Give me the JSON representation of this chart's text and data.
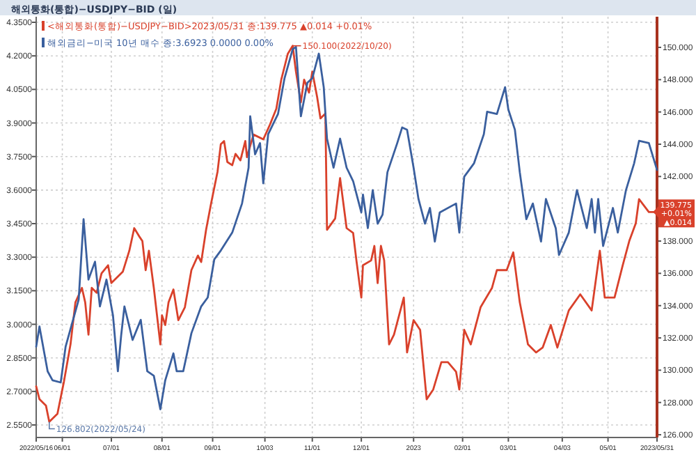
{
  "chart_data": {
    "type": "line",
    "title": "해외통화(통합)−USDJPY−BID (일)",
    "xlim": [
      "2022-05-16",
      "2023-05-31"
    ],
    "xticks": [
      {
        "value": "2022-05-16",
        "label": "2022/05/16"
      },
      {
        "value": "2022-06-01",
        "label": "06/01"
      },
      {
        "value": "2022-07-01",
        "label": "07/01"
      },
      {
        "value": "2022-08-01",
        "label": "08/01"
      },
      {
        "value": "2022-09-01",
        "label": "09/01"
      },
      {
        "value": "2022-10-03",
        "label": "10/03"
      },
      {
        "value": "2022-11-01",
        "label": "11/01"
      },
      {
        "value": "2022-12-01",
        "label": "12/01"
      },
      {
        "value": "2023-01-02",
        "label": "2023"
      },
      {
        "value": "2023-02-01",
        "label": "02/01"
      },
      {
        "value": "2023-03-01",
        "label": "03/01"
      },
      {
        "value": "2023-04-03",
        "label": "04/03"
      },
      {
        "value": "2023-05-01",
        "label": "05/01"
      },
      {
        "value": "2023-05-31",
        "label": "2023/05/31"
      }
    ],
    "ylim": [
      2.494,
      4.375
    ],
    "yticks": [
      {
        "value": 2.55,
        "label": "2.5500"
      },
      {
        "value": 2.7,
        "label": "2.7000"
      },
      {
        "value": 2.85,
        "label": "2.8500"
      },
      {
        "value": 3.0,
        "label": "3.0000"
      },
      {
        "value": 3.15,
        "label": "3.1500"
      },
      {
        "value": 3.3,
        "label": "3.3000"
      },
      {
        "value": 3.45,
        "label": "3.4500"
      },
      {
        "value": 3.6,
        "label": "3.6000"
      },
      {
        "value": 3.75,
        "label": "3.7500"
      },
      {
        "value": 3.9,
        "label": "3.9000"
      },
      {
        "value": 4.05,
        "label": "4.0500"
      },
      {
        "value": 4.2,
        "label": "4.2000"
      },
      {
        "value": 4.35,
        "label": "4.3500"
      }
    ],
    "y2lim": [
      125.83,
      151.9
    ],
    "y2ticks": [
      {
        "value": 126,
        "label": "126.000"
      },
      {
        "value": 128,
        "label": "128.000"
      },
      {
        "value": 130,
        "label": "130.000"
      },
      {
        "value": 132,
        "label": "132.000"
      },
      {
        "value": 134,
        "label": "134.000"
      },
      {
        "value": 136,
        "label": "136.000"
      },
      {
        "value": 138,
        "label": "138.000"
      },
      {
        "value": 142,
        "label": "142.000"
      },
      {
        "value": 144,
        "label": "144.000"
      },
      {
        "value": 146,
        "label": "146.000"
      },
      {
        "value": 148,
        "label": "148.000"
      },
      {
        "value": 150,
        "label": "150.000"
      }
    ],
    "grid": true,
    "legend": "top left",
    "series": [
      {
        "name": "<해외통화(통합)−USDJPY−BID>2023/05/31 종:139.775 ▲0.014 +0.01%",
        "color": "#d9412b",
        "axis": "y2",
        "x": [
          "2022-05-16",
          "2022-05-18",
          "2022-05-22",
          "2022-05-24",
          "2022-05-28",
          "2022-05-29",
          "2022-06-02",
          "2022-06-06",
          "2022-06-09",
          "2022-06-13",
          "2022-06-15",
          "2022-06-17",
          "2022-06-19",
          "2022-06-22",
          "2022-06-25",
          "2022-06-29",
          "2022-07-01",
          "2022-07-08",
          "2022-07-12",
          "2022-07-15",
          "2022-07-18",
          "2022-07-20",
          "2022-07-22",
          "2022-07-24",
          "2022-07-27",
          "2022-07-31",
          "2022-08-01",
          "2022-08-03",
          "2022-08-05",
          "2022-08-08",
          "2022-08-11",
          "2022-08-15",
          "2022-08-19",
          "2022-08-23",
          "2022-08-25",
          "2022-08-28",
          "2022-08-31",
          "2022-09-04",
          "2022-09-06",
          "2022-09-08",
          "2022-09-10",
          "2022-09-13",
          "2022-09-15",
          "2022-09-18",
          "2022-09-21",
          "2022-09-22",
          "2022-09-26",
          "2022-10-02",
          "2022-10-06",
          "2022-10-10",
          "2022-10-13",
          "2022-10-17",
          "2022-10-20",
          "2022-10-22",
          "2022-10-25",
          "2022-10-27",
          "2022-10-30",
          "2022-11-01",
          "2022-11-04",
          "2022-11-06",
          "2022-11-09",
          "2022-11-10",
          "2022-11-15",
          "2022-11-18",
          "2022-11-22",
          "2022-11-26",
          "2022-11-28",
          "2022-12-01",
          "2022-12-02",
          "2022-12-07",
          "2022-12-09",
          "2022-12-11",
          "2022-12-13",
          "2022-12-15",
          "2022-12-18",
          "2022-12-21",
          "2022-12-27",
          "2022-12-29",
          "2023-01-02",
          "2023-01-06",
          "2023-01-10",
          "2023-01-14",
          "2023-01-19",
          "2023-01-23",
          "2023-01-28",
          "2023-01-30",
          "2023-02-02",
          "2023-02-06",
          "2023-02-12",
          "2023-02-19",
          "2023-02-22",
          "2023-02-28",
          "2023-03-04",
          "2023-03-08",
          "2023-03-13",
          "2023-03-18",
          "2023-03-22",
          "2023-03-27",
          "2023-03-31",
          "2023-04-07",
          "2023-04-14",
          "2023-04-21",
          "2023-04-26",
          "2023-04-29",
          "2023-05-05",
          "2023-05-10",
          "2023-05-14",
          "2023-05-18",
          "2023-05-20",
          "2023-05-26",
          "2023-05-31"
        ],
        "values": [
          129.0,
          128.2,
          127.8,
          126.8,
          127.2,
          127.3,
          129.3,
          131.6,
          134.2,
          135.1,
          134.2,
          132.2,
          135.1,
          134.8,
          136.0,
          136.5,
          135.4,
          136.1,
          137.4,
          138.8,
          138.3,
          138.0,
          136.2,
          137.4,
          135.1,
          131.6,
          133.4,
          132.8,
          134.2,
          135.0,
          133.1,
          133.9,
          136.2,
          137.1,
          136.7,
          138.7,
          140.3,
          142.3,
          144.0,
          144.2,
          142.9,
          142.7,
          143.4,
          143.0,
          144.2,
          143.2,
          144.6,
          144.3,
          145.2,
          146.2,
          148.0,
          149.6,
          150.1,
          148.5,
          146.6,
          148.0,
          147.2,
          148.5,
          146.9,
          145.6,
          145.9,
          138.7,
          139.4,
          141.9,
          138.8,
          138.5,
          136.8,
          134.5,
          136.5,
          136.8,
          137.7,
          135.4,
          137.7,
          136.8,
          131.6,
          132.2,
          134.5,
          131.1,
          133.1,
          132.5,
          128.2,
          128.8,
          130.5,
          130.5,
          129.9,
          128.8,
          132.5,
          131.6,
          133.9,
          135.1,
          136.2,
          136.2,
          137.3,
          134.2,
          131.6,
          131.1,
          131.4,
          132.8,
          131.4,
          133.7,
          134.7,
          133.7,
          137.4,
          134.5,
          134.5,
          136.5,
          138.0,
          139.1,
          140.6,
          139.8,
          139.8
        ]
      },
      {
        "name": "해외금리−미국 10년 매수 종:3.6923 0.0000 0.00%",
        "color": "#3a5f9e",
        "x": [
          "2022-05-16",
          "2022-05-18",
          "2022-05-23",
          "2022-05-26",
          "2022-05-31",
          "2022-06-03",
          "2022-06-11",
          "2022-06-14",
          "2022-06-17",
          "2022-06-21",
          "2022-06-24",
          "2022-06-28",
          "2022-07-02",
          "2022-07-05",
          "2022-07-07",
          "2022-07-09",
          "2022-07-14",
          "2022-07-19",
          "2022-07-23",
          "2022-07-27",
          "2022-07-31",
          "2022-08-03",
          "2022-08-08",
          "2022-08-10",
          "2022-08-14",
          "2022-08-19",
          "2022-08-25",
          "2022-08-29",
          "2022-09-02",
          "2022-09-06",
          "2022-09-13",
          "2022-09-19",
          "2022-09-23",
          "2022-09-24",
          "2022-09-27",
          "2022-09-30",
          "2022-10-02",
          "2022-10-05",
          "2022-10-11",
          "2022-10-15",
          "2022-10-20",
          "2022-10-22",
          "2022-10-25",
          "2022-10-29",
          "2022-11-01",
          "2022-11-05",
          "2022-11-08",
          "2022-11-10",
          "2022-11-14",
          "2022-11-18",
          "2022-11-22",
          "2022-11-26",
          "2022-12-01",
          "2022-12-02",
          "2022-12-05",
          "2022-12-08",
          "2022-12-11",
          "2022-12-14",
          "2022-12-17",
          "2022-12-23",
          "2022-12-26",
          "2022-12-29",
          "2023-01-02",
          "2023-01-05",
          "2023-01-09",
          "2023-01-12",
          "2023-01-15",
          "2023-01-18",
          "2023-01-28",
          "2023-01-30",
          "2023-02-02",
          "2023-02-08",
          "2023-02-14",
          "2023-02-16",
          "2023-02-22",
          "2023-02-27",
          "2023-03-01",
          "2023-03-05",
          "2023-03-08",
          "2023-03-12",
          "2023-03-16",
          "2023-03-21",
          "2023-03-24",
          "2023-03-30",
          "2023-04-01",
          "2023-04-07",
          "2023-04-12",
          "2023-04-18",
          "2023-04-21",
          "2023-04-23",
          "2023-04-25",
          "2023-04-28",
          "2023-05-04",
          "2023-05-07",
          "2023-05-12",
          "2023-05-17",
          "2023-05-20",
          "2023-05-26",
          "2023-05-31"
        ],
        "values": [
          2.9,
          2.99,
          2.79,
          2.75,
          2.74,
          2.9,
          3.11,
          3.47,
          3.2,
          3.28,
          3.08,
          3.2,
          3.04,
          2.79,
          2.95,
          3.08,
          2.93,
          3.02,
          2.79,
          2.77,
          2.62,
          2.75,
          2.87,
          2.79,
          2.79,
          2.96,
          3.08,
          3.12,
          3.29,
          3.33,
          3.41,
          3.54,
          3.7,
          3.93,
          3.76,
          3.81,
          3.63,
          3.85,
          3.94,
          4.1,
          4.23,
          4.24,
          3.93,
          4.08,
          4.1,
          4.21,
          4.06,
          3.83,
          3.7,
          3.83,
          3.7,
          3.64,
          3.5,
          3.58,
          3.43,
          3.6,
          3.45,
          3.49,
          3.68,
          3.81,
          3.88,
          3.87,
          3.7,
          3.56,
          3.45,
          3.52,
          3.37,
          3.5,
          3.54,
          3.41,
          3.66,
          3.72,
          3.85,
          3.95,
          3.94,
          4.06,
          3.96,
          3.87,
          3.68,
          3.47,
          3.54,
          3.37,
          3.56,
          3.43,
          3.31,
          3.41,
          3.6,
          3.43,
          3.56,
          3.41,
          3.56,
          3.35,
          3.52,
          3.41,
          3.6,
          3.72,
          3.82,
          3.81,
          3.69
        ]
      }
    ],
    "annotations": [
      "150.100(2022/10/20)",
      "126.802(2022/05/24)",
      "139.775\n+0.01%\n▲0.014"
    ]
  }
}
